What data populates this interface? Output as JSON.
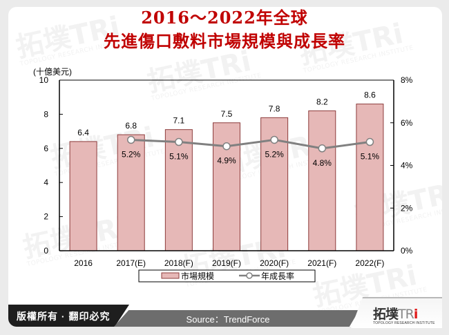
{
  "title": {
    "line1": "2016～2022年全球",
    "line2": "先進傷口敷料市場規模與成長率"
  },
  "footer": {
    "copyright": "版權所有 · 翻印必究",
    "source": "Source：TrendForce",
    "logo_text": "拓墣",
    "logo_tri": "TR",
    "logo_i": "i",
    "logo_sub": "TOPOLOGY RESEARCH INSTITUTE"
  },
  "watermark": {
    "text": "拓墣TRi",
    "sub": "TOPOLOGY RESEARCH INSTITUTE"
  },
  "colors": {
    "title": "#c00000",
    "bar_fill": "#e6b8b7",
    "bar_stroke": "#8c3b3b",
    "line": "#808080"
  },
  "chart_data": {
    "type": "bar",
    "title": "2016～2022年全球先進傷口敷料市場規模與成長率",
    "categories": [
      "2016",
      "2017(E)",
      "2018(F)",
      "2019(F)",
      "2020(F)",
      "2021(F)",
      "2022(F)"
    ],
    "series": [
      {
        "name": "市場規模",
        "type": "bar",
        "axis": "left",
        "values": [
          6.4,
          6.8,
          7.1,
          7.5,
          7.8,
          8.2,
          8.6
        ],
        "labels": [
          "6.4",
          "6.8",
          "7.1",
          "7.5",
          "7.8",
          "8.2",
          "8.6"
        ]
      },
      {
        "name": "年成長率",
        "type": "line",
        "axis": "right",
        "values": [
          null,
          5.2,
          5.1,
          4.9,
          5.2,
          4.8,
          5.1
        ],
        "labels": [
          null,
          "5.2%",
          "5.1%",
          "4.9%",
          "5.2%",
          "4.8%",
          "5.1%"
        ]
      }
    ],
    "ylabel": "(十億美元)",
    "ylim": [
      0,
      10
    ],
    "yticks": [
      "0",
      "2",
      "4",
      "6",
      "8",
      "10"
    ],
    "y2lim": [
      0,
      8
    ],
    "y2ticks": [
      "0%",
      "2%",
      "4%",
      "6%",
      "8%"
    ],
    "grid": false,
    "legend_position": "bottom"
  }
}
